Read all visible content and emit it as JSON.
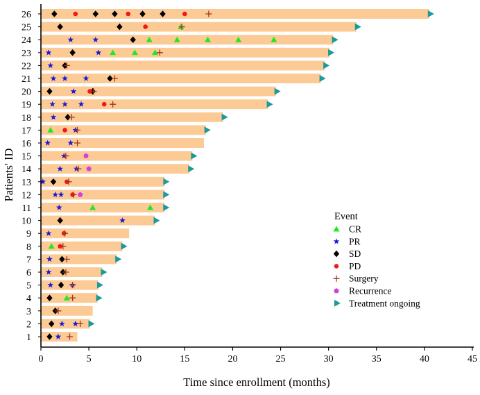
{
  "chart_data": {
    "type": "swimmer",
    "title": "",
    "xlabel": "Time since enrollment (months)",
    "ylabel": "Patients' ID",
    "xlim": [
      0,
      45
    ],
    "xticks": [
      0,
      5,
      10,
      15,
      20,
      25,
      30,
      35,
      40,
      45
    ],
    "bar_color": "#FCCB95",
    "legend": {
      "title": "Event",
      "placement": "right-center",
      "items": [
        {
          "key": "CR",
          "label": "CR",
          "color": "#22E822",
          "marker": "triangle"
        },
        {
          "key": "PR",
          "label": "PR",
          "color": "#1A1AD6",
          "marker": "star"
        },
        {
          "key": "SD",
          "label": "SD",
          "color": "#000000",
          "marker": "diamond"
        },
        {
          "key": "PD",
          "label": "PD",
          "color": "#F01818",
          "marker": "circle"
        },
        {
          "key": "Surgery",
          "label": "Surgery",
          "color": "#A0341E",
          "marker": "plus"
        },
        {
          "key": "Recurrence",
          "label": "Recurrence",
          "color": "#D040E0",
          "marker": "pentagon"
        },
        {
          "key": "Ongoing",
          "label": "Treatment ongoing",
          "color": "#1A9A9A",
          "marker": "right-triangle"
        }
      ]
    },
    "patients": [
      {
        "id": "1",
        "duration": 3.8,
        "ongoing": false,
        "events": {
          "SD": [
            0.9
          ],
          "PR": [
            1.8
          ],
          "Surgery": [
            3.0
          ]
        }
      },
      {
        "id": "2",
        "duration": 5.1,
        "ongoing": true,
        "events": {
          "SD": [
            1.1
          ],
          "PR": [
            2.2,
            3.6
          ],
          "Surgery": [
            4.1
          ]
        }
      },
      {
        "id": "3",
        "duration": 5.4,
        "ongoing": false,
        "events": {
          "SD": [
            1.5
          ],
          "Surgery": [
            1.8
          ]
        }
      },
      {
        "id": "4",
        "duration": 5.9,
        "ongoing": true,
        "events": {
          "SD": [
            0.9
          ],
          "CR": [
            2.7
          ],
          "Surgery": [
            3.3
          ]
        }
      },
      {
        "id": "5",
        "duration": 6.0,
        "ongoing": true,
        "events": {
          "PR": [
            1.0,
            3.3
          ],
          "SD": [
            2.1
          ],
          "Surgery": [
            3.3
          ]
        }
      },
      {
        "id": "6",
        "duration": 6.4,
        "ongoing": true,
        "events": {
          "PR": [
            0.8
          ],
          "SD": [
            2.3
          ],
          "Surgery": [
            2.6
          ]
        }
      },
      {
        "id": "7",
        "duration": 7.9,
        "ongoing": true,
        "events": {
          "PR": [
            0.9
          ],
          "SD": [
            2.2
          ],
          "Surgery": [
            2.7
          ]
        }
      },
      {
        "id": "8",
        "duration": 8.5,
        "ongoing": true,
        "events": {
          "CR": [
            1.1
          ],
          "PD": [
            2.0
          ],
          "Surgery": [
            2.3
          ]
        }
      },
      {
        "id": "9",
        "duration": 9.2,
        "ongoing": false,
        "events": {
          "PR": [
            0.8
          ],
          "PD": [
            2.4
          ],
          "Surgery": [
            2.5
          ]
        }
      },
      {
        "id": "10",
        "duration": 11.9,
        "ongoing": true,
        "events": {
          "SD": [
            2.0
          ],
          "PR": [
            8.5
          ]
        }
      },
      {
        "id": "11",
        "duration": 12.9,
        "ongoing": true,
        "events": {
          "PR": [
            1.9
          ],
          "CR": [
            5.4,
            11.4
          ]
        }
      },
      {
        "id": "12",
        "duration": 12.9,
        "ongoing": true,
        "events": {
          "PR": [
            1.5,
            2.1
          ],
          "PD": [
            3.3
          ],
          "Surgery": [
            3.4
          ],
          "Recurrence": [
            4.1
          ]
        }
      },
      {
        "id": "13",
        "duration": 12.9,
        "ongoing": true,
        "events": {
          "PR": [
            0.2
          ],
          "SD": [
            1.3
          ],
          "PD": [
            2.7
          ],
          "Surgery": [
            2.9
          ]
        }
      },
      {
        "id": "14",
        "duration": 15.5,
        "ongoing": true,
        "events": {
          "PR": [
            2.0,
            3.7
          ],
          "Surgery": [
            3.9
          ],
          "Recurrence": [
            5.0
          ]
        }
      },
      {
        "id": "15",
        "duration": 15.8,
        "ongoing": true,
        "events": {
          "PR": [
            2.4
          ],
          "Surgery": [
            2.6
          ],
          "Recurrence": [
            4.7
          ]
        }
      },
      {
        "id": "16",
        "duration": 17.0,
        "ongoing": false,
        "events": {
          "PR": [
            0.7,
            3.1
          ],
          "Surgery": [
            3.8
          ]
        }
      },
      {
        "id": "17",
        "duration": 17.2,
        "ongoing": true,
        "events": {
          "CR": [
            1.0
          ],
          "PD": [
            2.5
          ],
          "PR": [
            3.6
          ],
          "Surgery": [
            3.8
          ]
        }
      },
      {
        "id": "18",
        "duration": 19.0,
        "ongoing": true,
        "events": {
          "PR": [
            1.3
          ],
          "SD": [
            2.8
          ],
          "Surgery": [
            3.2
          ]
        }
      },
      {
        "id": "19",
        "duration": 23.7,
        "ongoing": true,
        "events": {
          "PR": [
            1.2,
            2.5,
            4.2
          ],
          "PD": [
            6.6
          ],
          "Surgery": [
            7.5
          ]
        }
      },
      {
        "id": "20",
        "duration": 24.5,
        "ongoing": true,
        "events": {
          "SD": [
            0.9,
            5.4
          ],
          "PR": [
            3.4
          ],
          "PD": [
            5.1
          ],
          "Surgery": [
            5.5
          ]
        }
      },
      {
        "id": "21",
        "duration": 29.2,
        "ongoing": true,
        "events": {
          "PR": [
            1.3,
            2.5,
            4.7
          ],
          "SD": [
            7.2
          ],
          "Surgery": [
            7.7
          ]
        }
      },
      {
        "id": "22",
        "duration": 29.6,
        "ongoing": true,
        "events": {
          "PR": [
            1.0
          ],
          "SD": [
            2.5
          ],
          "Surgery": [
            2.7
          ]
        }
      },
      {
        "id": "23",
        "duration": 30.1,
        "ongoing": true,
        "events": {
          "PR": [
            0.8,
            6.0
          ],
          "SD": [
            3.3
          ],
          "CR": [
            7.5,
            9.8,
            11.9
          ],
          "Surgery": [
            12.4
          ]
        }
      },
      {
        "id": "24",
        "duration": 30.5,
        "ongoing": true,
        "events": {
          "PR": [
            3.1,
            5.7
          ],
          "SD": [
            9.6
          ],
          "CR": [
            11.3,
            14.2,
            17.4,
            20.6,
            24.3
          ]
        }
      },
      {
        "id": "25",
        "duration": 32.9,
        "ongoing": true,
        "events": {
          "SD": [
            2.0,
            8.2
          ],
          "PD": [
            10.9
          ],
          "CR": [
            14.6
          ],
          "Surgery": [
            14.7
          ]
        }
      },
      {
        "id": "26",
        "duration": 40.5,
        "ongoing": true,
        "events": {
          "SD": [
            1.4,
            5.7,
            7.7,
            10.6,
            12.7
          ],
          "PD": [
            3.6,
            9.1,
            15.0
          ],
          "Surgery": [
            17.5
          ]
        }
      }
    ]
  }
}
